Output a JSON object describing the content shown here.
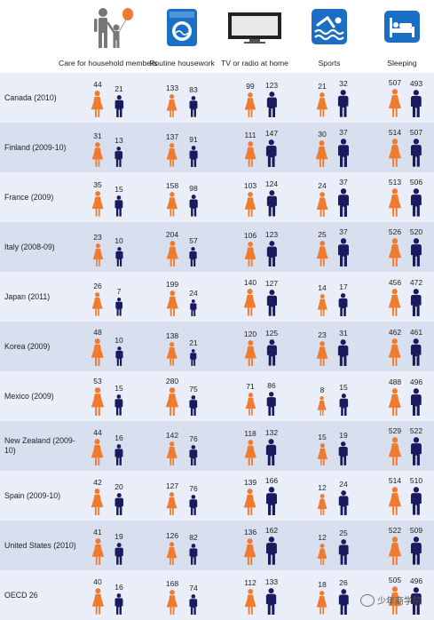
{
  "chart_data": {
    "type": "pictogram",
    "unit": "minutes per day",
    "categories": [
      "Care for household members",
      "Routine housework",
      "TV or radio at home",
      "Sports",
      "Sleeping"
    ],
    "series": [
      {
        "name": "Women",
        "color": "#f07a2e"
      },
      {
        "name": "Men",
        "color": "#1a1a5e"
      }
    ],
    "rows": [
      {
        "country": "Canada (2010)",
        "women": [
          44,
          133,
          99,
          21,
          507
        ],
        "men": [
          21,
          83,
          123,
          32,
          493
        ]
      },
      {
        "country": "Finland (2009-10)",
        "women": [
          31,
          137,
          111,
          30,
          514
        ],
        "men": [
          13,
          91,
          147,
          37,
          507
        ]
      },
      {
        "country": "France (2009)",
        "women": [
          35,
          158,
          103,
          24,
          513
        ],
        "men": [
          15,
          98,
          124,
          37,
          506
        ]
      },
      {
        "country": "Italy (2008-09)",
        "women": [
          23,
          204,
          106,
          25,
          526
        ],
        "men": [
          10,
          57,
          123,
          37,
          520
        ]
      },
      {
        "country": "Japan (2011)",
        "women": [
          26,
          199,
          140,
          14,
          456
        ],
        "men": [
          7,
          24,
          127,
          17,
          472
        ]
      },
      {
        "country": "Korea (2009)",
        "women": [
          48,
          138,
          120,
          23,
          462
        ],
        "men": [
          10,
          21,
          125,
          31,
          461
        ]
      },
      {
        "country": "Mexico (2009)",
        "women": [
          53,
          280,
          71,
          8,
          488
        ],
        "men": [
          15,
          75,
          86,
          15,
          496
        ]
      },
      {
        "country": "New Zealand (2009-10)",
        "women": [
          44,
          142,
          118,
          15,
          529
        ],
        "men": [
          16,
          76,
          132,
          19,
          522
        ]
      },
      {
        "country": "Spain (2009-10)",
        "women": [
          42,
          127,
          139,
          12,
          514
        ],
        "men": [
          20,
          76,
          166,
          24,
          510
        ]
      },
      {
        "country": "United States (2010)",
        "women": [
          41,
          126,
          136,
          12,
          522
        ],
        "men": [
          19,
          82,
          162,
          25,
          509
        ]
      },
      {
        "country": "OECD 26",
        "women": [
          40,
          168,
          112,
          18,
          505
        ],
        "men": [
          16,
          74,
          133,
          26,
          496
        ]
      }
    ]
  },
  "watermark": "少年商学院",
  "colors": {
    "women": "#f07a2e",
    "men": "#1a1a5e",
    "icon_blue": "#1a6fc4"
  }
}
